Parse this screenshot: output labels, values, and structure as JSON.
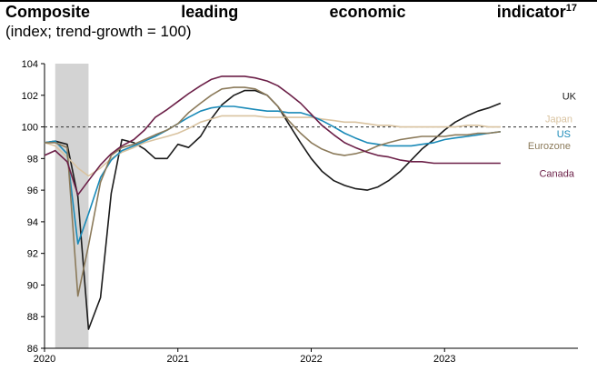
{
  "title": {
    "words": [
      "Composite",
      "leading",
      "economic",
      "indicator"
    ],
    "footnote": "17"
  },
  "subtitle": "(index; trend-growth = 100)",
  "chart_data": {
    "type": "line",
    "xlim": [
      2020.0,
      2024.0
    ],
    "ylim": [
      86,
      104
    ],
    "yticks": [
      86,
      88,
      90,
      92,
      94,
      96,
      98,
      100,
      102,
      104
    ],
    "xticks": [
      {
        "value": 2020,
        "label": "2020"
      },
      {
        "value": 2021,
        "label": "2021"
      },
      {
        "value": 2022,
        "label": "2022"
      },
      {
        "value": 2023,
        "label": "2023"
      }
    ],
    "reference_line": {
      "y": 100,
      "style": "dashed"
    },
    "shaded_period": {
      "from": 2020.08,
      "to": 2020.33,
      "color": "#d3d3d3"
    },
    "grid": false,
    "series": [
      {
        "name": "UK",
        "color": "#1a1a1a",
        "points": [
          [
            2020.0,
            99.0
          ],
          [
            2020.08,
            99.1
          ],
          [
            2020.17,
            98.9
          ],
          [
            2020.25,
            95.6
          ],
          [
            2020.33,
            87.2
          ],
          [
            2020.42,
            89.2
          ],
          [
            2020.5,
            95.8
          ],
          [
            2020.58,
            99.2
          ],
          [
            2020.67,
            99.0
          ],
          [
            2020.75,
            98.6
          ],
          [
            2020.83,
            98.0
          ],
          [
            2020.92,
            98.0
          ],
          [
            2021.0,
            98.9
          ],
          [
            2021.08,
            98.7
          ],
          [
            2021.17,
            99.4
          ],
          [
            2021.25,
            100.5
          ],
          [
            2021.33,
            101.4
          ],
          [
            2021.42,
            102.0
          ],
          [
            2021.5,
            102.3
          ],
          [
            2021.58,
            102.3
          ],
          [
            2021.67,
            102.0
          ],
          [
            2021.75,
            101.3
          ],
          [
            2021.83,
            100.2
          ],
          [
            2021.92,
            99.0
          ],
          [
            2022.0,
            98.0
          ],
          [
            2022.08,
            97.2
          ],
          [
            2022.17,
            96.6
          ],
          [
            2022.25,
            96.3
          ],
          [
            2022.33,
            96.1
          ],
          [
            2022.42,
            96.0
          ],
          [
            2022.5,
            96.2
          ],
          [
            2022.58,
            96.6
          ],
          [
            2022.67,
            97.2
          ],
          [
            2022.75,
            97.9
          ],
          [
            2022.83,
            98.6
          ],
          [
            2022.92,
            99.2
          ],
          [
            2023.0,
            99.8
          ],
          [
            2023.08,
            100.3
          ],
          [
            2023.17,
            100.7
          ],
          [
            2023.25,
            101.0
          ],
          [
            2023.33,
            101.2
          ],
          [
            2023.42,
            101.5
          ]
        ]
      },
      {
        "name": "Japan",
        "color": "#d9c3a0",
        "points": [
          [
            2020.0,
            99.0
          ],
          [
            2020.08,
            98.8
          ],
          [
            2020.17,
            98.1
          ],
          [
            2020.25,
            97.4
          ],
          [
            2020.33,
            96.9
          ],
          [
            2020.42,
            97.4
          ],
          [
            2020.5,
            98.0
          ],
          [
            2020.58,
            98.4
          ],
          [
            2020.67,
            98.7
          ],
          [
            2020.75,
            99.0
          ],
          [
            2020.83,
            99.2
          ],
          [
            2020.92,
            99.4
          ],
          [
            2021.0,
            99.6
          ],
          [
            2021.08,
            99.9
          ],
          [
            2021.17,
            100.3
          ],
          [
            2021.25,
            100.5
          ],
          [
            2021.33,
            100.7
          ],
          [
            2021.42,
            100.7
          ],
          [
            2021.5,
            100.7
          ],
          [
            2021.58,
            100.7
          ],
          [
            2021.67,
            100.6
          ],
          [
            2021.75,
            100.6
          ],
          [
            2021.83,
            100.6
          ],
          [
            2021.92,
            100.6
          ],
          [
            2022.0,
            100.6
          ],
          [
            2022.08,
            100.5
          ],
          [
            2022.17,
            100.4
          ],
          [
            2022.25,
            100.3
          ],
          [
            2022.33,
            100.3
          ],
          [
            2022.42,
            100.2
          ],
          [
            2022.5,
            100.1
          ],
          [
            2022.58,
            100.1
          ],
          [
            2022.67,
            100.0
          ],
          [
            2022.75,
            100.0
          ],
          [
            2022.83,
            100.0
          ],
          [
            2022.92,
            100.0
          ],
          [
            2023.0,
            100.0
          ],
          [
            2023.08,
            100.0
          ],
          [
            2023.17,
            100.1
          ],
          [
            2023.25,
            100.1
          ],
          [
            2023.33,
            100.0
          ],
          [
            2023.42,
            100.0
          ]
        ]
      },
      {
        "name": "US",
        "color": "#1a8ab8",
        "points": [
          [
            2020.0,
            99.0
          ],
          [
            2020.08,
            99.1
          ],
          [
            2020.17,
            98.3
          ],
          [
            2020.25,
            92.6
          ],
          [
            2020.33,
            94.5
          ],
          [
            2020.42,
            96.8
          ],
          [
            2020.5,
            97.9
          ],
          [
            2020.58,
            98.5
          ],
          [
            2020.67,
            98.8
          ],
          [
            2020.75,
            99.1
          ],
          [
            2020.83,
            99.4
          ],
          [
            2020.92,
            99.8
          ],
          [
            2021.0,
            100.2
          ],
          [
            2021.08,
            100.6
          ],
          [
            2021.17,
            101.0
          ],
          [
            2021.25,
            101.2
          ],
          [
            2021.33,
            101.3
          ],
          [
            2021.42,
            101.3
          ],
          [
            2021.5,
            101.2
          ],
          [
            2021.58,
            101.1
          ],
          [
            2021.67,
            101.0
          ],
          [
            2021.75,
            101.0
          ],
          [
            2021.83,
            100.9
          ],
          [
            2021.92,
            100.9
          ],
          [
            2022.0,
            100.7
          ],
          [
            2022.08,
            100.4
          ],
          [
            2022.17,
            100.0
          ],
          [
            2022.25,
            99.6
          ],
          [
            2022.33,
            99.3
          ],
          [
            2022.42,
            99.0
          ],
          [
            2022.5,
            98.9
          ],
          [
            2022.58,
            98.8
          ],
          [
            2022.67,
            98.8
          ],
          [
            2022.75,
            98.8
          ],
          [
            2022.83,
            98.9
          ],
          [
            2022.92,
            99.0
          ],
          [
            2023.0,
            99.2
          ],
          [
            2023.08,
            99.3
          ],
          [
            2023.17,
            99.4
          ],
          [
            2023.25,
            99.5
          ],
          [
            2023.33,
            99.6
          ],
          [
            2023.42,
            99.7
          ]
        ]
      },
      {
        "name": "Eurozone",
        "color": "#8b7a5a",
        "points": [
          [
            2020.0,
            99.0
          ],
          [
            2020.08,
            99.0
          ],
          [
            2020.17,
            98.7
          ],
          [
            2020.25,
            89.3
          ],
          [
            2020.33,
            92.5
          ],
          [
            2020.42,
            96.5
          ],
          [
            2020.5,
            98.2
          ],
          [
            2020.58,
            98.7
          ],
          [
            2020.67,
            98.9
          ],
          [
            2020.75,
            99.2
          ],
          [
            2020.83,
            99.5
          ],
          [
            2020.92,
            99.8
          ],
          [
            2021.0,
            100.2
          ],
          [
            2021.08,
            100.9
          ],
          [
            2021.17,
            101.5
          ],
          [
            2021.25,
            102.0
          ],
          [
            2021.33,
            102.4
          ],
          [
            2021.42,
            102.5
          ],
          [
            2021.5,
            102.5
          ],
          [
            2021.58,
            102.4
          ],
          [
            2021.67,
            102.0
          ],
          [
            2021.75,
            101.3
          ],
          [
            2021.83,
            100.4
          ],
          [
            2021.92,
            99.6
          ],
          [
            2022.0,
            99.0
          ],
          [
            2022.08,
            98.6
          ],
          [
            2022.17,
            98.3
          ],
          [
            2022.25,
            98.2
          ],
          [
            2022.33,
            98.3
          ],
          [
            2022.42,
            98.5
          ],
          [
            2022.5,
            98.8
          ],
          [
            2022.58,
            99.0
          ],
          [
            2022.67,
            99.2
          ],
          [
            2022.75,
            99.3
          ],
          [
            2022.83,
            99.4
          ],
          [
            2022.92,
            99.4
          ],
          [
            2023.0,
            99.4
          ],
          [
            2023.08,
            99.5
          ],
          [
            2023.17,
            99.5
          ],
          [
            2023.25,
            99.6
          ],
          [
            2023.33,
            99.6
          ],
          [
            2023.42,
            99.7
          ]
        ]
      },
      {
        "name": "Canada",
        "color": "#6b1f47",
        "points": [
          [
            2020.0,
            98.2
          ],
          [
            2020.08,
            98.5
          ],
          [
            2020.17,
            97.8
          ],
          [
            2020.25,
            95.7
          ],
          [
            2020.33,
            96.6
          ],
          [
            2020.42,
            97.6
          ],
          [
            2020.5,
            98.3
          ],
          [
            2020.58,
            98.8
          ],
          [
            2020.67,
            99.2
          ],
          [
            2020.75,
            99.8
          ],
          [
            2020.83,
            100.6
          ],
          [
            2020.92,
            101.1
          ],
          [
            2021.0,
            101.6
          ],
          [
            2021.08,
            102.1
          ],
          [
            2021.17,
            102.6
          ],
          [
            2021.25,
            103.0
          ],
          [
            2021.33,
            103.2
          ],
          [
            2021.42,
            103.2
          ],
          [
            2021.5,
            103.2
          ],
          [
            2021.58,
            103.1
          ],
          [
            2021.67,
            102.9
          ],
          [
            2021.75,
            102.6
          ],
          [
            2021.83,
            102.1
          ],
          [
            2021.92,
            101.5
          ],
          [
            2022.0,
            100.8
          ],
          [
            2022.08,
            100.1
          ],
          [
            2022.17,
            99.5
          ],
          [
            2022.25,
            99.0
          ],
          [
            2022.33,
            98.7
          ],
          [
            2022.42,
            98.4
          ],
          [
            2022.5,
            98.2
          ],
          [
            2022.58,
            98.1
          ],
          [
            2022.67,
            97.9
          ],
          [
            2022.75,
            97.8
          ],
          [
            2022.83,
            97.8
          ],
          [
            2022.92,
            97.7
          ],
          [
            2023.0,
            97.7
          ],
          [
            2023.08,
            97.7
          ],
          [
            2023.17,
            97.7
          ],
          [
            2023.25,
            97.7
          ],
          [
            2023.33,
            97.7
          ],
          [
            2023.42,
            97.7
          ]
        ]
      }
    ]
  }
}
